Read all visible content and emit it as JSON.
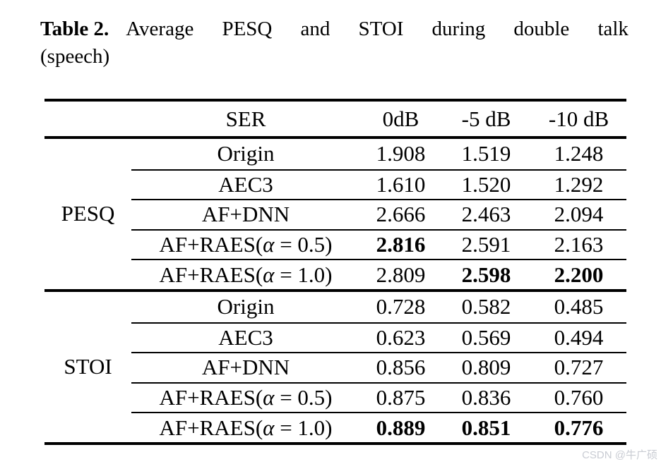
{
  "caption": {
    "label": "Table 2.",
    "line1_words": [
      "Average",
      "PESQ",
      "and",
      "STOI",
      "during",
      "double",
      "talk"
    ],
    "line2": "(speech)"
  },
  "header": {
    "ser_label": "SER",
    "col_labels": [
      "0dB",
      "-5 dB",
      "-10 dB"
    ]
  },
  "sections": [
    {
      "metric": "PESQ",
      "rows": [
        {
          "method": "Origin",
          "values": [
            "1.908",
            "1.519",
            "1.248"
          ],
          "bold": [
            false,
            false,
            false
          ]
        },
        {
          "method": "AEC3",
          "values": [
            "1.610",
            "1.520",
            "1.292"
          ],
          "bold": [
            false,
            false,
            false
          ]
        },
        {
          "method": "AF+DNN",
          "values": [
            "2.666",
            "2.463",
            "2.094"
          ],
          "bold": [
            false,
            false,
            false
          ]
        },
        {
          "method": "AF+RAES(α = 0.5)",
          "values": [
            "2.816",
            "2.591",
            "2.163"
          ],
          "bold": [
            true,
            false,
            false
          ]
        },
        {
          "method": "AF+RAES(α = 1.0)",
          "values": [
            "2.809",
            "2.598",
            "2.200"
          ],
          "bold": [
            false,
            true,
            true
          ]
        }
      ]
    },
    {
      "metric": "STOI",
      "rows": [
        {
          "method": "Origin",
          "values": [
            "0.728",
            "0.582",
            "0.485"
          ],
          "bold": [
            false,
            false,
            false
          ]
        },
        {
          "method": "AEC3",
          "values": [
            "0.623",
            "0.569",
            "0.494"
          ],
          "bold": [
            false,
            false,
            false
          ]
        },
        {
          "method": "AF+DNN",
          "values": [
            "0.856",
            "0.809",
            "0.727"
          ],
          "bold": [
            false,
            false,
            false
          ]
        },
        {
          "method": "AF+RAES(α = 0.5)",
          "values": [
            "0.875",
            "0.836",
            "0.760"
          ],
          "bold": [
            false,
            false,
            false
          ]
        },
        {
          "method": "AF+RAES(α = 1.0)",
          "values": [
            "0.889",
            "0.851",
            "0.776"
          ],
          "bold": [
            true,
            true,
            true
          ]
        }
      ]
    }
  ],
  "watermark": "CSDN @牛广硕",
  "colors": {
    "text": "#000000",
    "rule": "#000000",
    "watermark": "#c9ccd3",
    "background": "#ffffff"
  },
  "chart_data": {
    "type": "table",
    "title": "Table 2. Average PESQ and STOI during double talk (speech)",
    "column_headers": [
      "SER",
      "0dB",
      "-5 dB",
      "-10 dB"
    ],
    "row_groups": [
      "PESQ",
      "STOI"
    ]
  }
}
